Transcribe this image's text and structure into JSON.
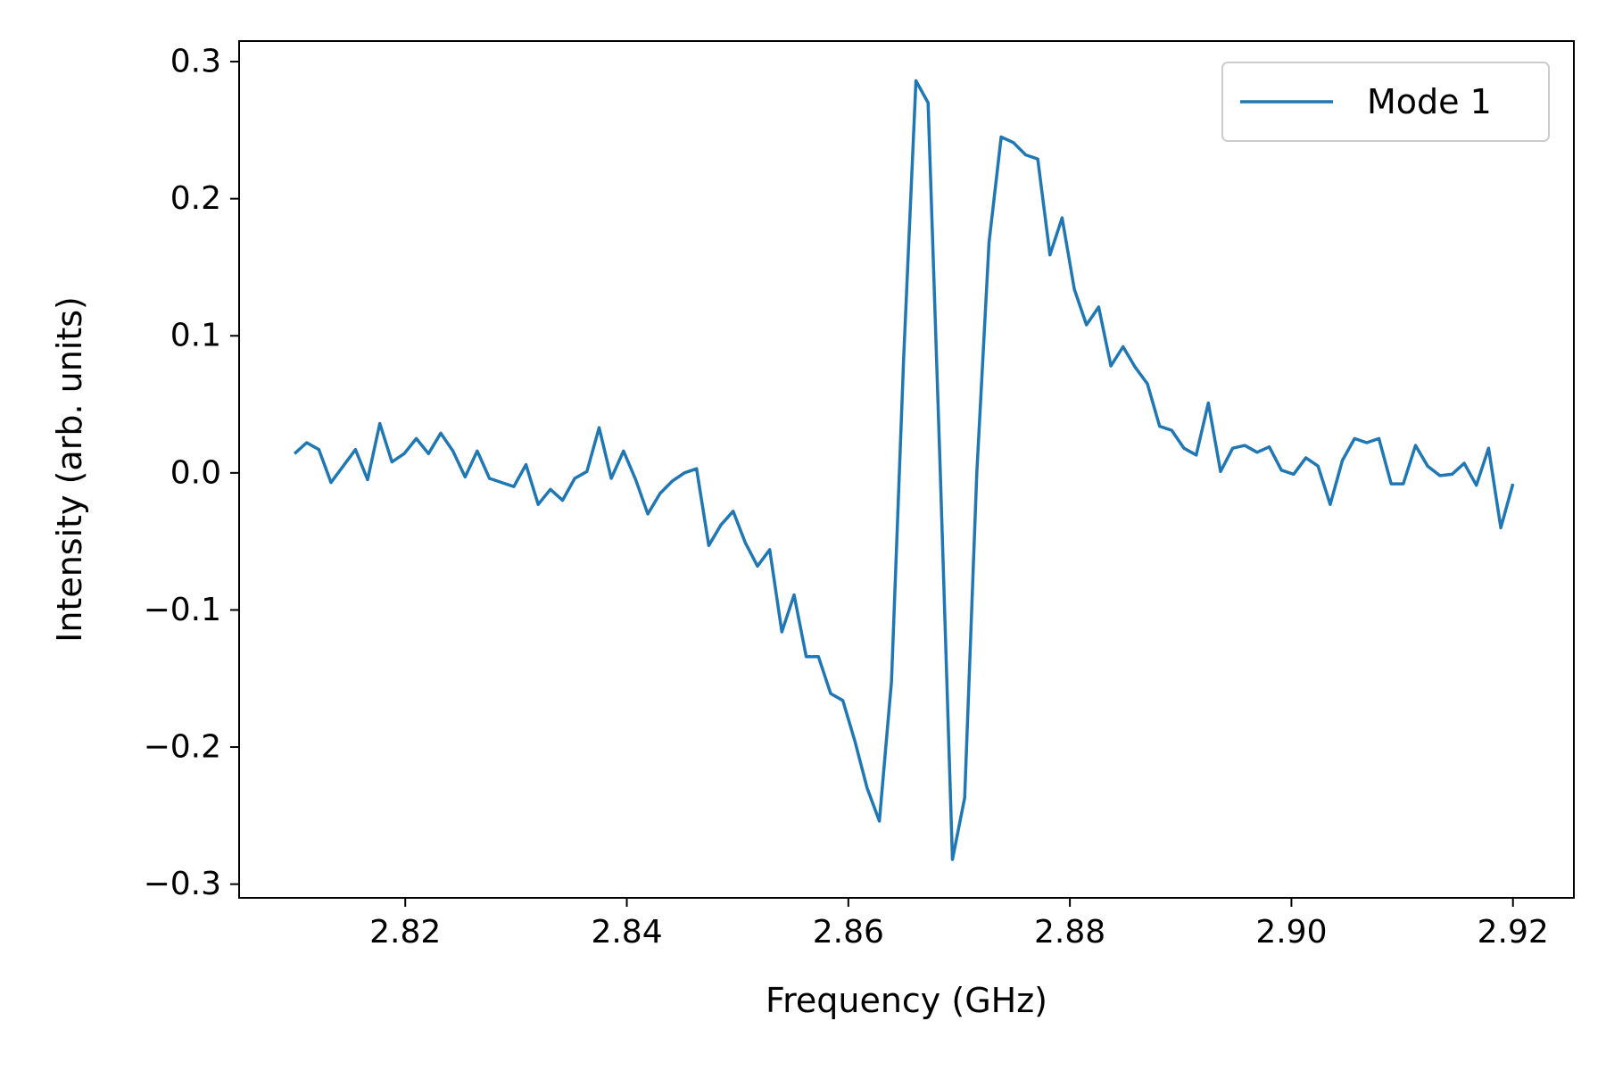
{
  "chart_data": {
    "type": "line",
    "title": "",
    "xlabel": "Frequency (GHz)",
    "ylabel": "Intensity (arb. units)",
    "xlim": [
      2.805,
      2.9255
    ],
    "ylim": [
      -0.31,
      0.315
    ],
    "xticks": [
      {
        "value": 2.82,
        "label": "2.82"
      },
      {
        "value": 2.84,
        "label": "2.84"
      },
      {
        "value": 2.86,
        "label": "2.86"
      },
      {
        "value": 2.88,
        "label": "2.88"
      },
      {
        "value": 2.9,
        "label": "2.90"
      },
      {
        "value": 2.92,
        "label": "2.92"
      }
    ],
    "yticks": [
      {
        "value": -0.3,
        "label": "−0.3"
      },
      {
        "value": -0.2,
        "label": "−0.2"
      },
      {
        "value": -0.1,
        "label": "−0.1"
      },
      {
        "value": 0.0,
        "label": "0.0"
      },
      {
        "value": 0.1,
        "label": "0.1"
      },
      {
        "value": 0.2,
        "label": "0.2"
      },
      {
        "value": 0.3,
        "label": "0.3"
      }
    ],
    "grid": false,
    "legend": {
      "position": "top-right"
    },
    "series": [
      {
        "name": "Mode 1",
        "color": "#1f77b4",
        "x": [
          2.81,
          2.8111,
          2.8122,
          2.8133,
          2.8144,
          2.8155,
          2.8166,
          2.8177,
          2.8188,
          2.8199,
          2.821,
          2.8221,
          2.8232,
          2.8243,
          2.8254,
          2.8265,
          2.8276,
          2.8287,
          2.8298,
          2.8309,
          2.832,
          2.8331,
          2.8342,
          2.8353,
          2.8364,
          2.8375,
          2.8386,
          2.8397,
          2.8408,
          2.8419,
          2.843,
          2.8441,
          2.8452,
          2.8463,
          2.8474,
          2.8485,
          2.8496,
          2.8507,
          2.8518,
          2.8529,
          2.854,
          2.8551,
          2.8562,
          2.8573,
          2.8584,
          2.8595,
          2.8606,
          2.8617,
          2.8628,
          2.8639,
          2.865,
          2.8661,
          2.8672,
          2.8683,
          2.8694,
          2.8705,
          2.8716,
          2.8727,
          2.8738,
          2.8749,
          2.876,
          2.8771,
          2.8782,
          2.8793,
          2.8804,
          2.8815,
          2.8826,
          2.8837,
          2.8848,
          2.8859,
          2.887,
          2.8881,
          2.8892,
          2.8903,
          2.8914,
          2.8925,
          2.8936,
          2.8947,
          2.8958,
          2.8969,
          2.898,
          2.8991,
          2.9002,
          2.9013,
          2.9024,
          2.9035,
          2.9046,
          2.9057,
          2.9068,
          2.9079,
          2.909,
          2.9101,
          2.9112,
          2.9123,
          2.9134,
          2.9145,
          2.9156,
          2.9167,
          2.9178,
          2.9189,
          2.92
        ],
        "y": [
          0.014,
          0.022,
          0.017,
          -0.007,
          0.005,
          0.017,
          -0.005,
          0.036,
          0.008,
          0.014,
          0.025,
          0.014,
          0.029,
          0.016,
          -0.003,
          0.016,
          -0.004,
          -0.007,
          -0.01,
          0.006,
          -0.023,
          -0.012,
          -0.02,
          -0.004,
          0.001,
          0.033,
          -0.004,
          0.016,
          -0.005,
          -0.03,
          -0.015,
          -0.006,
          0.0,
          0.003,
          -0.053,
          -0.038,
          -0.028,
          -0.051,
          -0.068,
          -0.056,
          -0.116,
          -0.089,
          -0.134,
          -0.134,
          -0.161,
          -0.166,
          -0.196,
          -0.23,
          -0.254,
          -0.152,
          0.085,
          0.286,
          0.27,
          0.0,
          -0.282,
          -0.237,
          0.0,
          0.168,
          0.245,
          0.241,
          0.232,
          0.229,
          0.159,
          0.186,
          0.134,
          0.108,
          0.121,
          0.078,
          0.092,
          0.077,
          0.065,
          0.034,
          0.031,
          0.018,
          0.013,
          0.051,
          0.001,
          0.018,
          0.02,
          0.015,
          0.019,
          0.002,
          -0.001,
          0.011,
          0.005,
          -0.023,
          0.009,
          0.025,
          0.022,
          0.025,
          -0.008,
          -0.008,
          0.02,
          0.005,
          -0.002,
          -0.001,
          0.007,
          -0.009,
          0.018,
          -0.04,
          -0.008
        ]
      }
    ]
  }
}
